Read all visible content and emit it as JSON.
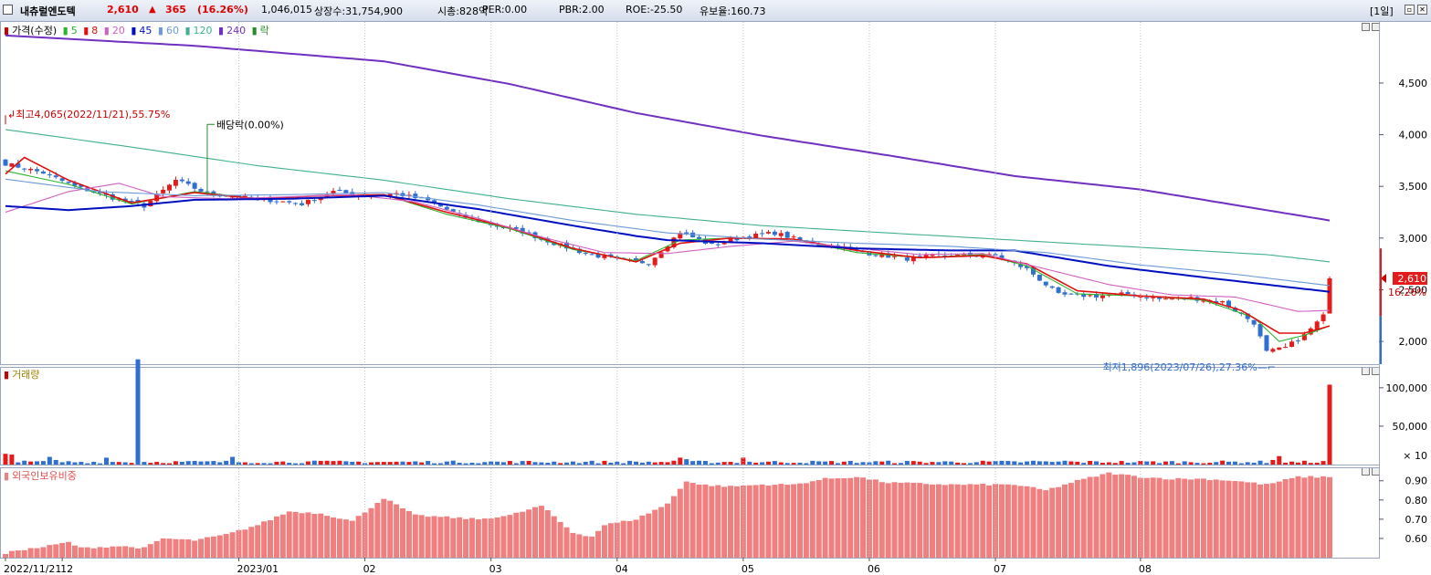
{
  "titlebar": {
    "stock_name": "내츄럴엔도텍",
    "price": "2,610",
    "change_arrow": "▲",
    "change": "365",
    "change_pct": "(16.26%)",
    "volume": "1,046,015",
    "listed_shares": "상장수:31,754,900",
    "market_cap": "시총:828억",
    "per": "PER:0.00",
    "pbr": "PBR:2.00",
    "roe": "ROE:-25.50",
    "float_ratio": "유보율:160.73",
    "period": "[1일]"
  },
  "price_legend": {
    "label": "가격(수정)",
    "ma": [
      {
        "label": "5",
        "color": "#2db42d"
      },
      {
        "label": "8",
        "color": "#e01010"
      },
      {
        "label": "20",
        "color": "#d060c0"
      },
      {
        "label": "45",
        "color": "#0010c0"
      },
      {
        "label": "60",
        "color": "#6c9ad8"
      },
      {
        "label": "120",
        "color": "#40b090"
      },
      {
        "label": "240",
        "color": "#7030c0"
      }
    ],
    "ex_label": "락"
  },
  "volume_legend": {
    "label": "거래량"
  },
  "foreign_legend": {
    "label": "외국인보유비중"
  },
  "colors": {
    "up": "#e31b1b",
    "down": "#2f6fd0",
    "foreign_bar": "#f08080"
  },
  "chart_data": [
    {
      "type": "candlestick",
      "title": "가격(수정)",
      "y_ticks": [
        2000,
        2500,
        3000,
        3500,
        4000,
        4500
      ],
      "y_tick_labels": [
        "2,000",
        "2,500",
        "3,000",
        "3,500",
        "4,000",
        "4,500"
      ],
      "ylim": [
        1780,
        5100
      ],
      "x_labels": [
        "2022/11/21",
        "12",
        "2023/01",
        "02",
        "03",
        "04",
        "05",
        "06",
        "07",
        "08"
      ],
      "last_price": {
        "value": 2610,
        "label": "2,610",
        "pct": "16.26%"
      },
      "annotations": [
        {
          "text": "최고4,065(2022/11/21),55.75%",
          "value": 4065
        },
        {
          "text": "배당락(0.00%)"
        },
        {
          "text": "최저1,896(2023/07/26),27.36%",
          "value": 1896
        }
      ],
      "anchors": [
        [
          0,
          3720
        ],
        [
          6,
          3630
        ],
        [
          11,
          3500
        ],
        [
          17,
          3390
        ],
        [
          22,
          3310
        ],
        [
          27,
          3560
        ],
        [
          32,
          3430
        ],
        [
          38,
          3390
        ],
        [
          43,
          3360
        ],
        [
          47,
          3330
        ],
        [
          52,
          3450
        ],
        [
          57,
          3410
        ],
        [
          62,
          3430
        ],
        [
          67,
          3360
        ],
        [
          72,
          3220
        ],
        [
          77,
          3130
        ],
        [
          82,
          3060
        ],
        [
          87,
          2950
        ],
        [
          92,
          2850
        ],
        [
          97,
          2790
        ],
        [
          102,
          2760
        ],
        [
          107,
          3060
        ],
        [
          112,
          2930
        ],
        [
          117,
          3010
        ],
        [
          122,
          3050
        ],
        [
          127,
          2960
        ],
        [
          132,
          2920
        ],
        [
          137,
          2850
        ],
        [
          143,
          2800
        ],
        [
          148,
          2830
        ],
        [
          153,
          2830
        ],
        [
          157,
          2830
        ],
        [
          162,
          2700
        ],
        [
          167,
          2450
        ],
        [
          173,
          2440
        ],
        [
          178,
          2460
        ],
        [
          183,
          2410
        ],
        [
          188,
          2420
        ],
        [
          193,
          2380
        ],
        [
          198,
          2180
        ],
        [
          200,
          1896
        ],
        [
          203,
          1940
        ],
        [
          206,
          2060
        ],
        [
          209,
          2245
        ],
        [
          210,
          2610
        ]
      ],
      "moving_averages": [
        {
          "period": 5,
          "color": "#2db42d",
          "values": [
            [
              0,
              3650
            ],
            [
              10,
              3520
            ],
            [
              20,
              3330
            ],
            [
              30,
              3450
            ],
            [
              40,
              3380
            ],
            [
              50,
              3410
            ],
            [
              60,
              3420
            ],
            [
              70,
              3230
            ],
            [
              80,
              3090
            ],
            [
              90,
              2890
            ],
            [
              100,
              2780
            ],
            [
              107,
              2980
            ],
            [
              115,
              3000
            ],
            [
              125,
              2990
            ],
            [
              135,
              2860
            ],
            [
              145,
              2810
            ],
            [
              155,
              2840
            ],
            [
              162,
              2730
            ],
            [
              170,
              2460
            ],
            [
              180,
              2440
            ],
            [
              190,
              2400
            ],
            [
              198,
              2230
            ],
            [
              202,
              2000
            ],
            [
              206,
              2060
            ],
            [
              210,
              2150
            ]
          ]
        },
        {
          "period": 8,
          "color": "#e01010",
          "values": [
            [
              0,
              3620
            ],
            [
              3,
              3780
            ],
            [
              10,
              3560
            ],
            [
              20,
              3340
            ],
            [
              30,
              3440
            ],
            [
              40,
              3380
            ],
            [
              50,
              3410
            ],
            [
              60,
              3420
            ],
            [
              70,
              3250
            ],
            [
              80,
              3100
            ],
            [
              90,
              2900
            ],
            [
              100,
              2770
            ],
            [
              107,
              2950
            ],
            [
              115,
              3000
            ],
            [
              125,
              2990
            ],
            [
              135,
              2880
            ],
            [
              145,
              2810
            ],
            [
              155,
              2830
            ],
            [
              162,
              2750
            ],
            [
              170,
              2490
            ],
            [
              180,
              2440
            ],
            [
              190,
              2410
            ],
            [
              196,
              2300
            ],
            [
              202,
              2080
            ],
            [
              206,
              2080
            ],
            [
              210,
              2150
            ]
          ]
        },
        {
          "period": 20,
          "color": "#d060c0",
          "values": [
            [
              0,
              3250
            ],
            [
              10,
              3450
            ],
            [
              18,
              3530
            ],
            [
              25,
              3400
            ],
            [
              35,
              3380
            ],
            [
              45,
              3400
            ],
            [
              55,
              3420
            ],
            [
              65,
              3350
            ],
            [
              75,
              3190
            ],
            [
              85,
              3010
            ],
            [
              95,
              2860
            ],
            [
              105,
              2850
            ],
            [
              115,
              2920
            ],
            [
              125,
              2970
            ],
            [
              135,
              2900
            ],
            [
              145,
              2840
            ],
            [
              155,
              2850
            ],
            [
              165,
              2700
            ],
            [
              175,
              2550
            ],
            [
              185,
              2450
            ],
            [
              195,
              2430
            ],
            [
              205,
              2290
            ],
            [
              210,
              2300
            ]
          ]
        },
        {
          "period": 45,
          "color": "#0010c0",
          "values": [
            [
              0,
              3310
            ],
            [
              10,
              3270
            ],
            [
              20,
              3310
            ],
            [
              30,
              3370
            ],
            [
              45,
              3380
            ],
            [
              60,
              3410
            ],
            [
              75,
              3280
            ],
            [
              90,
              3120
            ],
            [
              100,
              3020
            ],
            [
              105,
              2980
            ],
            [
              120,
              2950
            ],
            [
              135,
              2900
            ],
            [
              150,
              2880
            ],
            [
              160,
              2880
            ],
            [
              175,
              2730
            ],
            [
              190,
              2620
            ],
            [
              200,
              2550
            ],
            [
              210,
              2480
            ]
          ]
        },
        {
          "period": 60,
          "color": "#6c9ad8",
          "values": [
            [
              0,
              3570
            ],
            [
              15,
              3450
            ],
            [
              30,
              3410
            ],
            [
              45,
              3420
            ],
            [
              60,
              3440
            ],
            [
              75,
              3320
            ],
            [
              90,
              3170
            ],
            [
              105,
              3050
            ],
            [
              120,
              2990
            ],
            [
              135,
              2950
            ],
            [
              150,
              2920
            ],
            [
              165,
              2860
            ],
            [
              180,
              2740
            ],
            [
              195,
              2650
            ],
            [
              210,
              2540
            ]
          ]
        },
        {
          "period": 120,
          "color": "#40b090",
          "values": [
            [
              0,
              4050
            ],
            [
              20,
              3880
            ],
            [
              40,
              3700
            ],
            [
              60,
              3560
            ],
            [
              80,
              3380
            ],
            [
              100,
              3230
            ],
            [
              120,
              3120
            ],
            [
              140,
              3050
            ],
            [
              160,
              2980
            ],
            [
              180,
              2910
            ],
            [
              200,
              2840
            ],
            [
              210,
              2770
            ]
          ]
        },
        {
          "period": 240,
          "color": "#7030c0",
          "values": [
            [
              0,
              4960
            ],
            [
              30,
              4860
            ],
            [
              60,
              4710
            ],
            [
              80,
              4490
            ],
            [
              100,
              4210
            ],
            [
              120,
              3990
            ],
            [
              140,
              3800
            ],
            [
              160,
              3600
            ],
            [
              180,
              3470
            ],
            [
              195,
              3320
            ],
            [
              210,
              3170
            ]
          ]
        }
      ]
    },
    {
      "type": "bar",
      "title": "거래량",
      "unit_label": "× 10",
      "y_ticks": [
        50000,
        100000
      ],
      "y_tick_labels": [
        "50,000",
        "100,000"
      ],
      "ylim": [
        0,
        120000
      ],
      "spikes": [
        {
          "index": 0,
          "value": 14000
        },
        {
          "index": 1,
          "value": 13000
        },
        {
          "index": 7,
          "value": 10000
        },
        {
          "index": 8,
          "value": 6000
        },
        {
          "index": 16,
          "value": 9000
        },
        {
          "index": 21,
          "value": 137000
        },
        {
          "index": 36,
          "value": 10000
        },
        {
          "index": 51,
          "value": 5000
        },
        {
          "index": 107,
          "value": 9000
        },
        {
          "index": 108,
          "value": 7000
        },
        {
          "index": 117,
          "value": 9000
        },
        {
          "index": 163,
          "value": 5000
        },
        {
          "index": 168,
          "value": 5000
        },
        {
          "index": 201,
          "value": 6000
        },
        {
          "index": 202,
          "value": 11000
        },
        {
          "index": 210,
          "value": 104000
        }
      ],
      "base_value": 4000
    },
    {
      "type": "bar",
      "title": "외국인보유비중",
      "y_ticks": [
        0.6,
        0.7,
        0.8,
        0.9
      ],
      "y_tick_labels": [
        "0.60",
        "0.70",
        "0.80",
        "0.90"
      ],
      "ylim": [
        0.5,
        0.97
      ],
      "anchors": [
        [
          0,
          0.52
        ],
        [
          2,
          0.54
        ],
        [
          5,
          0.55
        ],
        [
          10,
          0.58
        ],
        [
          12,
          0.55
        ],
        [
          18,
          0.56
        ],
        [
          22,
          0.55
        ],
        [
          25,
          0.6
        ],
        [
          30,
          0.59
        ],
        [
          35,
          0.62
        ],
        [
          40,
          0.67
        ],
        [
          45,
          0.74
        ],
        [
          50,
          0.73
        ],
        [
          55,
          0.69
        ],
        [
          60,
          0.81
        ],
        [
          65,
          0.72
        ],
        [
          70,
          0.71
        ],
        [
          75,
          0.7
        ],
        [
          80,
          0.72
        ],
        [
          85,
          0.77
        ],
        [
          90,
          0.63
        ],
        [
          93,
          0.61
        ],
        [
          95,
          0.67
        ],
        [
          100,
          0.7
        ],
        [
          105,
          0.78
        ],
        [
          108,
          0.9
        ],
        [
          110,
          0.88
        ],
        [
          115,
          0.87
        ],
        [
          120,
          0.88
        ],
        [
          125,
          0.88
        ],
        [
          130,
          0.91
        ],
        [
          135,
          0.92
        ],
        [
          140,
          0.89
        ],
        [
          150,
          0.88
        ],
        [
          160,
          0.88
        ],
        [
          165,
          0.85
        ],
        [
          170,
          0.9
        ],
        [
          175,
          0.94
        ],
        [
          180,
          0.92
        ],
        [
          185,
          0.91
        ],
        [
          190,
          0.91
        ],
        [
          195,
          0.9
        ],
        [
          200,
          0.88
        ],
        [
          205,
          0.92
        ],
        [
          210,
          0.92
        ]
      ]
    }
  ]
}
